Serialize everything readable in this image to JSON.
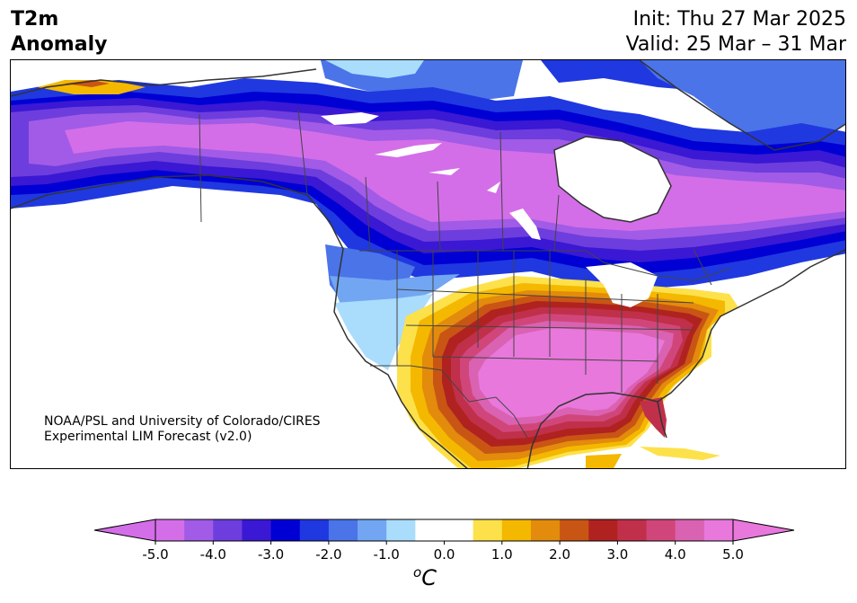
{
  "header": {
    "variable": "T2m",
    "variable2": "Anomaly",
    "init": "Init: Thu 27 Mar 2025",
    "valid": "Valid: 25 Mar – 31 Mar"
  },
  "credit": {
    "line1": "NOAA/PSL and University of Colorado/CIRES",
    "line2": "Experimental LIM Forecast (v2.0)"
  },
  "colorbar": {
    "units_main": "C",
    "units_sup": "o",
    "tick_labels": [
      "-5.0",
      "-4.0",
      "-3.0",
      "-2.0",
      "-1.0",
      "0.0",
      "1.0",
      "2.0",
      "3.0",
      "4.0",
      "5.0"
    ],
    "tick_values": [
      -5,
      -4,
      -3,
      -2,
      -1,
      0,
      1,
      2,
      3,
      4,
      5
    ],
    "range": [
      -5,
      5
    ],
    "step": 0.5,
    "colors": [
      "#d36ee8",
      "#a15be6",
      "#6e3ddd",
      "#3a18d4",
      "#0000d4",
      "#2038e0",
      "#4a74e8",
      "#72a6f2",
      "#aadcfc",
      "#ffffff",
      "#ffffff",
      "#fde14a",
      "#f4b800",
      "#e38b0c",
      "#c95514",
      "#b02220",
      "#c0304a",
      "#d1467a",
      "#da62b2",
      "#e878dc"
    ],
    "extend": "both",
    "extend_low_color": "#d36ee8",
    "extend_high_color": "#e878dc"
  }
}
